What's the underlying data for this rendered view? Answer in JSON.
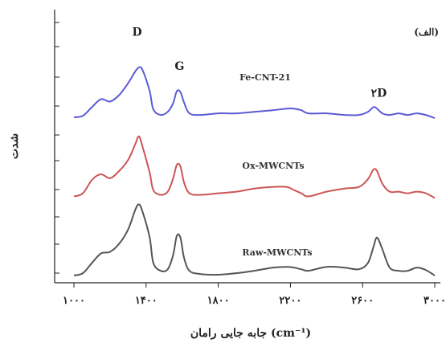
{
  "chart_data": {
    "type": "line",
    "title": "",
    "panel_label": "(الف)",
    "xlabel": "جابه جایی رامان (cm⁻¹)",
    "ylabel": "شدت",
    "xlim": [
      1000,
      3000
    ],
    "x_ticks": [
      1000,
      1400,
      1800,
      2200,
      2600,
      3000
    ],
    "x_tick_labels": [
      "۱۰۰۰",
      "۱۴۰۰",
      "۱۸۰۰",
      "۲۲۰۰",
      "۲۶۰۰",
      "۳۰۰۰"
    ],
    "ylim": [
      0,
      330
    ],
    "grid": false,
    "peak_labels": [
      {
        "text": "D",
        "x": 1350,
        "y": 305
      },
      {
        "text": "G",
        "x": 1585,
        "y": 262
      },
      {
        "text": "۲D",
        "x": 2690,
        "y": 228
      }
    ],
    "series": [
      {
        "name": "Fe-CNT-21",
        "color": "#5b5bd6",
        "x": [
          1000,
          1050,
          1100,
          1150,
          1200,
          1250,
          1300,
          1340,
          1360,
          1380,
          1420,
          1440,
          1480,
          1520,
          1550,
          1570,
          1590,
          1610,
          1640,
          1700,
          1800,
          1900,
          2000,
          2100,
          2180,
          2220,
          2260,
          2300,
          2400,
          2500,
          2580,
          2630,
          2660,
          2680,
          2710,
          2750,
          2800,
          2850,
          2900,
          2950,
          3000
        ],
        "values": [
          202,
          204,
          215,
          225,
          222,
          230,
          245,
          260,
          265,
          262,
          235,
          212,
          205,
          209,
          220,
          235,
          234,
          221,
          207,
          205,
          207,
          207,
          209,
          211,
          213,
          213,
          211,
          207,
          207,
          205,
          205,
          209,
          215,
          213,
          207,
          205,
          207,
          205,
          207,
          205,
          201
        ]
      },
      {
        "name": "Ox-MWCNTs",
        "color": "#cc5555",
        "x": [
          1000,
          1050,
          1100,
          1150,
          1200,
          1250,
          1300,
          1340,
          1360,
          1380,
          1420,
          1440,
          1480,
          1520,
          1550,
          1570,
          1590,
          1610,
          1640,
          1700,
          1800,
          1900,
          2000,
          2100,
          2180,
          2220,
          2260,
          2300,
          2400,
          2500,
          2580,
          2630,
          2660,
          2680,
          2710,
          2750,
          2800,
          2850,
          2900,
          2950,
          3000
        ],
        "values": [
          102,
          106,
          123,
          130,
          125,
          134,
          148,
          168,
          178,
          165,
          132,
          110,
          104,
          108,
          125,
          142,
          140,
          120,
          106,
          104,
          106,
          108,
          112,
          114,
          114,
          110,
          106,
          102,
          108,
          112,
          114,
          124,
          136,
          134,
          118,
          108,
          108,
          106,
          108,
          106,
          100
        ]
      },
      {
        "name": "Raw-MWCNTs",
        "color": "#555555",
        "x": [
          1000,
          1050,
          1100,
          1150,
          1200,
          1250,
          1300,
          1340,
          1360,
          1380,
          1420,
          1440,
          1480,
          1520,
          1550,
          1570,
          1590,
          1610,
          1640,
          1700,
          1800,
          1900,
          2000,
          2100,
          2180,
          2220,
          2260,
          2300,
          2400,
          2500,
          2580,
          2630,
          2660,
          2680,
          2710,
          2750,
          2800,
          2850,
          2900,
          2950,
          3000
        ],
        "values": [
          2,
          5,
          18,
          30,
          32,
          42,
          60,
          85,
          92,
          83,
          50,
          18,
          8,
          10,
          28,
          52,
          50,
          25,
          8,
          4,
          3,
          5,
          8,
          12,
          13,
          12,
          10,
          8,
          13,
          12,
          10,
          18,
          38,
          50,
          35,
          12,
          8,
          8,
          12,
          9,
          2
        ]
      }
    ]
  }
}
